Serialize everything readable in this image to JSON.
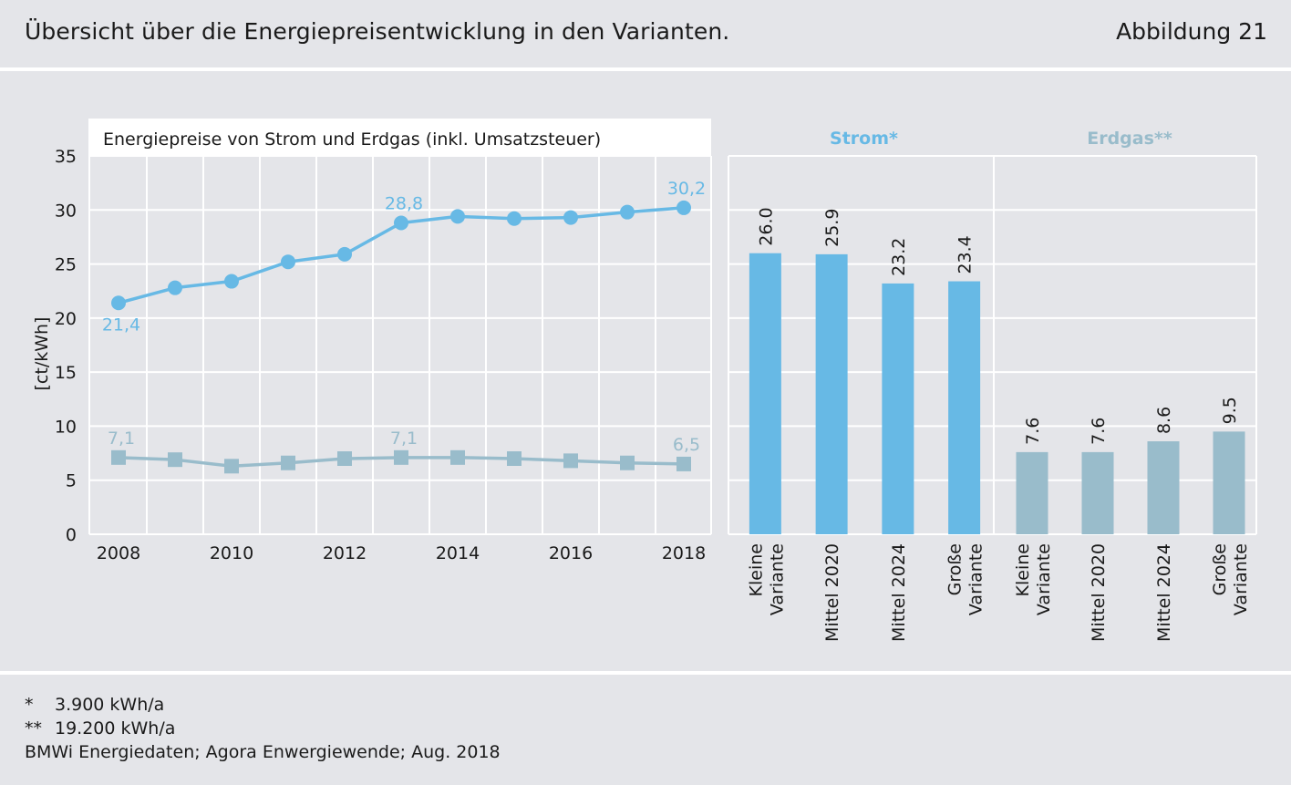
{
  "header": {
    "title": "Übersicht über die Energiepreisentwicklung in den Varianten.",
    "figure_label": "Abbildung 21"
  },
  "colors": {
    "strom": "#67b9e5",
    "erdgas": "#99bccb",
    "panel": "#ffffff",
    "background": "#e4e5e9",
    "grid": "#ffffff"
  },
  "chart_data": [
    {
      "type": "line",
      "title": "Energiepreise von Strom und Erdgas (inkl. Umsatzsteuer)",
      "ylabel": "[ct/kWh]",
      "xlabel": "",
      "ylim": [
        0,
        35
      ],
      "yticks": [
        0,
        5,
        10,
        15,
        20,
        25,
        30,
        35
      ],
      "xlim": [
        2008,
        2018
      ],
      "xticks": [
        2008,
        2010,
        2012,
        2014,
        2016,
        2018
      ],
      "x": [
        2008,
        2009,
        2010,
        2011,
        2012,
        2013,
        2014,
        2015,
        2016,
        2017,
        2018
      ],
      "grid": true,
      "series": [
        {
          "name": "Strom",
          "marker": "circle",
          "color": "#67b9e5",
          "values": [
            21.4,
            22.8,
            23.4,
            25.2,
            25.9,
            28.8,
            29.4,
            29.2,
            29.3,
            29.8,
            30.2
          ],
          "labels": [
            {
              "x": 2008,
              "text": "21,4",
              "position": "below"
            },
            {
              "x": 2013,
              "text": "28,8",
              "position": "above"
            },
            {
              "x": 2018,
              "text": "30,2",
              "position": "above"
            }
          ]
        },
        {
          "name": "Erdgas",
          "marker": "square",
          "color": "#99bccb",
          "values": [
            7.1,
            6.9,
            6.3,
            6.6,
            7.0,
            7.1,
            7.1,
            7.0,
            6.8,
            6.6,
            6.5
          ],
          "labels": [
            {
              "x": 2008,
              "text": "7,1",
              "position": "above"
            },
            {
              "x": 2013,
              "text": "7,1",
              "position": "above"
            },
            {
              "x": 2018,
              "text": "6,5",
              "position": "above"
            }
          ]
        }
      ]
    },
    {
      "type": "bar",
      "ylim": [
        0,
        35
      ],
      "grid": true,
      "groups": [
        {
          "name": "Strom*",
          "color": "#67b9e5",
          "categories": [
            "Kleine Variante",
            "Mittel 2020",
            "Mittel 2024",
            "Große Variante"
          ],
          "values": [
            26.0,
            25.9,
            23.2,
            23.4
          ],
          "value_labels": [
            "26.0",
            "25.9",
            "23.2",
            "23.4"
          ]
        },
        {
          "name": "Erdgas**",
          "color": "#99bccb",
          "categories": [
            "Kleine Variante",
            "Mittel 2020",
            "Mittel 2024",
            "Große Variante"
          ],
          "values": [
            7.6,
            7.6,
            8.6,
            9.5
          ],
          "value_labels": [
            "7.6",
            "7.6",
            "8.6",
            "9.5"
          ]
        }
      ]
    }
  ],
  "footnotes": [
    {
      "mark": "*",
      "text": "3.900 kWh/a"
    },
    {
      "mark": "**",
      "text": "19.200 kWh/a"
    }
  ],
  "source": "BMWi Energiedaten; Agora Enwergiewende; Aug. 2018"
}
